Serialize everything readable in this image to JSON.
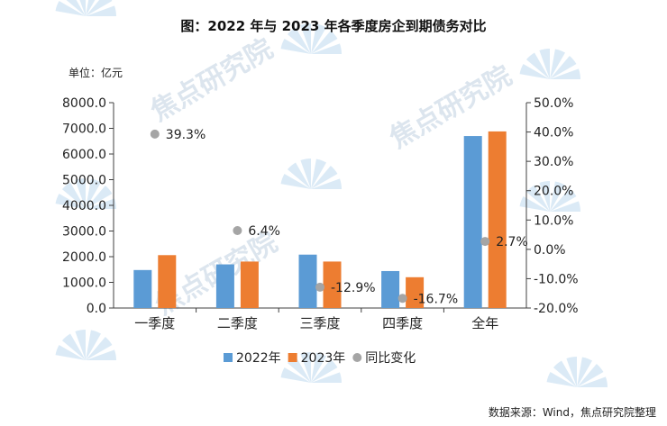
{
  "chart_data": {
    "type": "bar",
    "title": "图：2022 年与 2023 年各季度房企到期债务对比",
    "unit_label": "单位：亿元",
    "categories": [
      "一季度",
      "二季度",
      "三季度",
      "四季度",
      "全年"
    ],
    "series": [
      {
        "name": "2022年",
        "type": "bar",
        "axis": "left",
        "color": "#5b9bd5",
        "values": [
          1480,
          1700,
          2080,
          1440,
          6700
        ]
      },
      {
        "name": "2023年",
        "type": "bar",
        "axis": "left",
        "color": "#ed7d31",
        "values": [
          2060,
          1810,
          1810,
          1200,
          6880
        ]
      },
      {
        "name": "同比变化",
        "type": "scatter",
        "axis": "right",
        "color": "#a5a5a5",
        "values": [
          39.3,
          6.4,
          -12.9,
          -16.7,
          2.7
        ],
        "labels": [
          "39.3%",
          "6.4%",
          "-12.9%",
          "-16.7%",
          "2.7%"
        ]
      }
    ],
    "left_axis": {
      "min": 0,
      "max": 8000,
      "step": 1000,
      "ticks": [
        "0.0",
        "1000.0",
        "2000.0",
        "3000.0",
        "4000.0",
        "5000.0",
        "6000.0",
        "7000.0",
        "8000.0"
      ]
    },
    "right_axis": {
      "min": -20,
      "max": 50,
      "step": 10,
      "ticks": [
        "-20.0%",
        "-10.0%",
        "0.0%",
        "10.0%",
        "20.0%",
        "30.0%",
        "40.0%",
        "50.0%"
      ]
    },
    "legend_position": "bottom",
    "source": "数据来源：Wind，焦点研究院整理",
    "watermark": "焦点研究院"
  }
}
